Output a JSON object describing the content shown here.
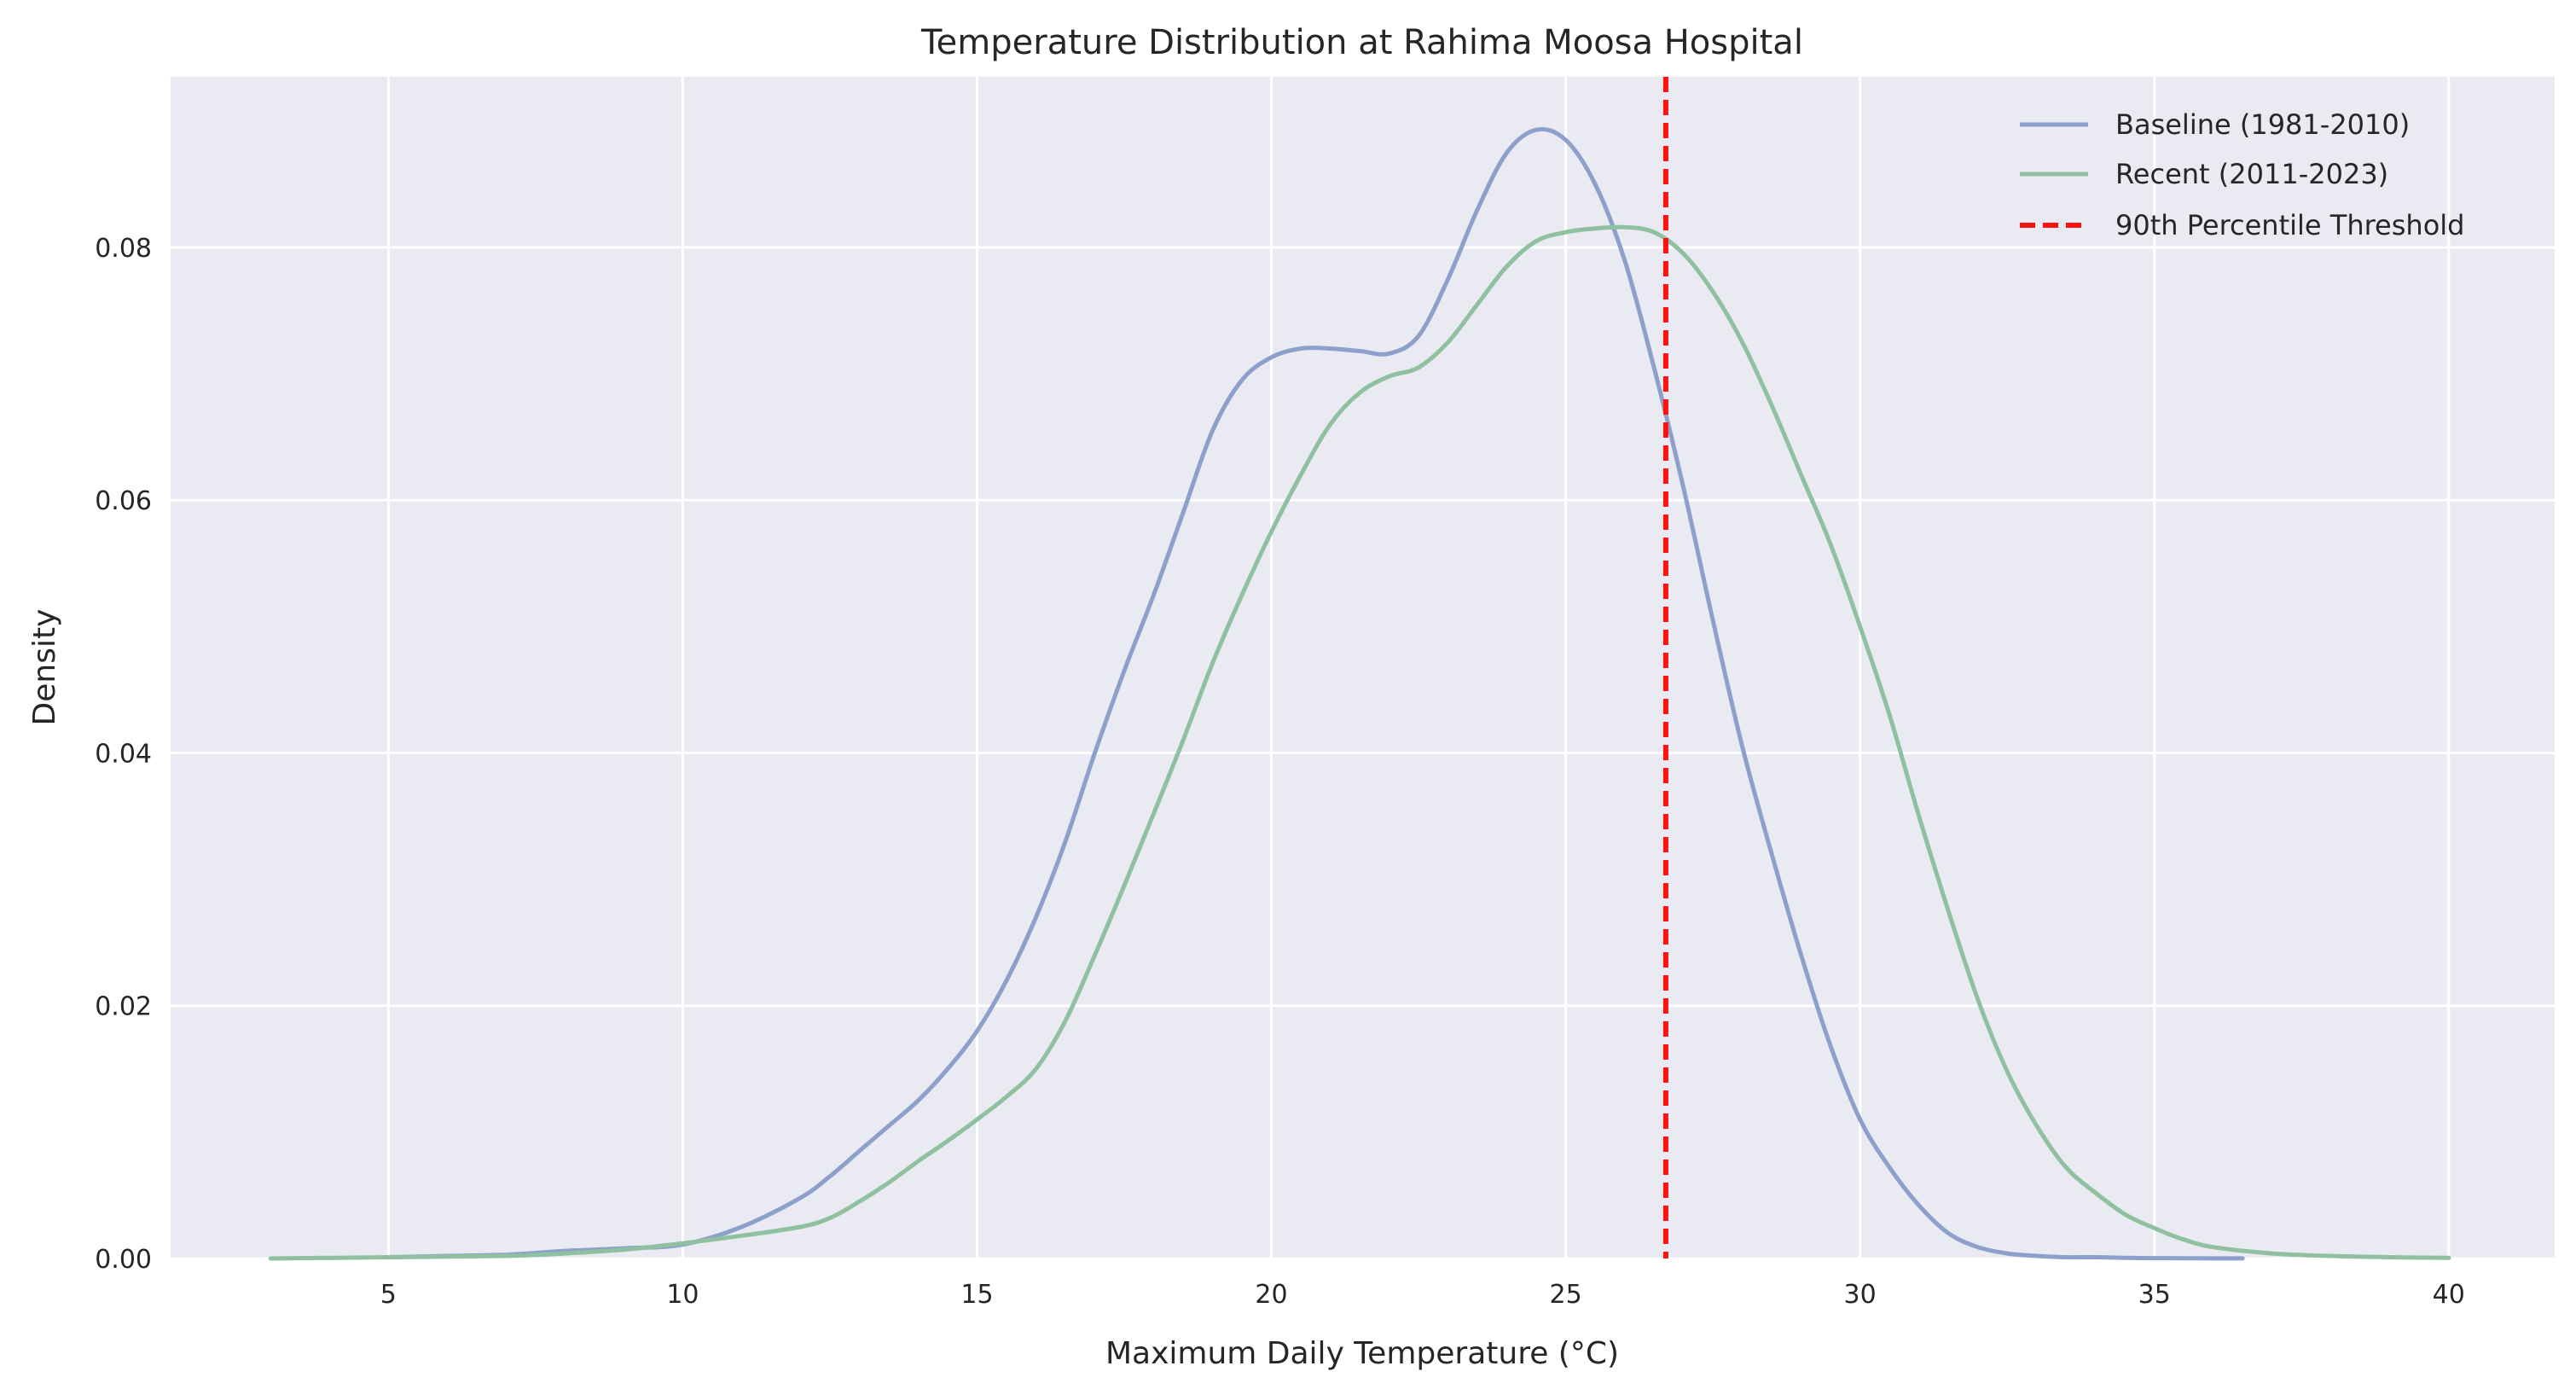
{
  "chart_data": {
    "type": "line",
    "title": "Temperature Distribution at Rahima Moosa Hospital",
    "xlabel": "Maximum Daily Temperature (°C)",
    "ylabel": "Density",
    "xlim": [
      1.3,
      41.8
    ],
    "ylim": [
      0,
      0.0935
    ],
    "xticks": [
      5,
      10,
      15,
      20,
      25,
      30,
      35,
      40
    ],
    "yticks": [
      0.0,
      0.02,
      0.04,
      0.06,
      0.08
    ],
    "grid": true,
    "legend_position": "top-right",
    "series": [
      {
        "name": "Baseline (1981-2010)",
        "color": "#8da0cb",
        "x": [
          5,
          6,
          7,
          8,
          9,
          10,
          11,
          12,
          12.5,
          13,
          13.5,
          14,
          14.5,
          15,
          15.5,
          16,
          16.5,
          17,
          17.5,
          18,
          18.5,
          19,
          19.5,
          20,
          20.5,
          21,
          21.5,
          22,
          22.5,
          23,
          23.5,
          24,
          24.5,
          25,
          25.5,
          26,
          26.5,
          27,
          27.5,
          28,
          28.5,
          29,
          29.5,
          30,
          30.5,
          31,
          31.5,
          32,
          32.5,
          33,
          33.5,
          34,
          34.5,
          35,
          35.5,
          36,
          36.5
        ],
        "y": [
          0.0001,
          0.0002,
          0.0003,
          0.0006,
          0.0008,
          0.0011,
          0.0025,
          0.0048,
          0.0065,
          0.0085,
          0.0105,
          0.0125,
          0.015,
          0.018,
          0.022,
          0.027,
          0.033,
          0.04,
          0.0465,
          0.0525,
          0.059,
          0.0655,
          0.0695,
          0.0713,
          0.072,
          0.072,
          0.0718,
          0.0716,
          0.073,
          0.0775,
          0.083,
          0.0875,
          0.0893,
          0.0885,
          0.085,
          0.079,
          0.0705,
          0.061,
          0.0505,
          0.0405,
          0.032,
          0.024,
          0.0168,
          0.011,
          0.0072,
          0.0042,
          0.002,
          0.0009,
          0.0004,
          0.0002,
          0.0001,
          0.0001,
          5e-05,
          3e-05,
          2e-05,
          1e-05,
          1e-05
        ]
      },
      {
        "name": "Recent (2011-2023)",
        "color": "#8fc1a0",
        "x": [
          3,
          5,
          7,
          8,
          9,
          10,
          11,
          12,
          12.5,
          13,
          13.5,
          14,
          14.5,
          15,
          15.5,
          16,
          16.5,
          17,
          17.5,
          18,
          18.5,
          19,
          19.5,
          20,
          20.5,
          21,
          21.5,
          22,
          22.5,
          23,
          23.5,
          24,
          24.5,
          25,
          25.5,
          26,
          26.5,
          27,
          27.5,
          28,
          28.5,
          29,
          29.5,
          30,
          30.5,
          31,
          31.5,
          32,
          32.5,
          33,
          33.5,
          34,
          34.5,
          35,
          35.5,
          36,
          37,
          38,
          39,
          40
        ],
        "y": [
          0.0,
          0.0001,
          0.0002,
          0.0004,
          0.0007,
          0.0012,
          0.0018,
          0.0025,
          0.0032,
          0.0045,
          0.006,
          0.0077,
          0.0093,
          0.011,
          0.0128,
          0.015,
          0.0188,
          0.024,
          0.0295,
          0.0352,
          0.041,
          0.0471,
          0.0525,
          0.0575,
          0.062,
          0.066,
          0.0685,
          0.0698,
          0.0705,
          0.0725,
          0.0755,
          0.0785,
          0.0805,
          0.0812,
          0.0815,
          0.0816,
          0.0812,
          0.0795,
          0.0765,
          0.0725,
          0.0675,
          0.062,
          0.0565,
          0.05,
          0.043,
          0.035,
          0.0275,
          0.0205,
          0.0148,
          0.0105,
          0.0072,
          0.0052,
          0.0035,
          0.0024,
          0.0015,
          0.0009,
          0.0004,
          0.0002,
          0.0001,
          5e-05
        ]
      },
      {
        "name": "90th Percentile Threshold",
        "color": "#ff1111",
        "style": "dashed",
        "vline_x": 26.7
      }
    ]
  }
}
